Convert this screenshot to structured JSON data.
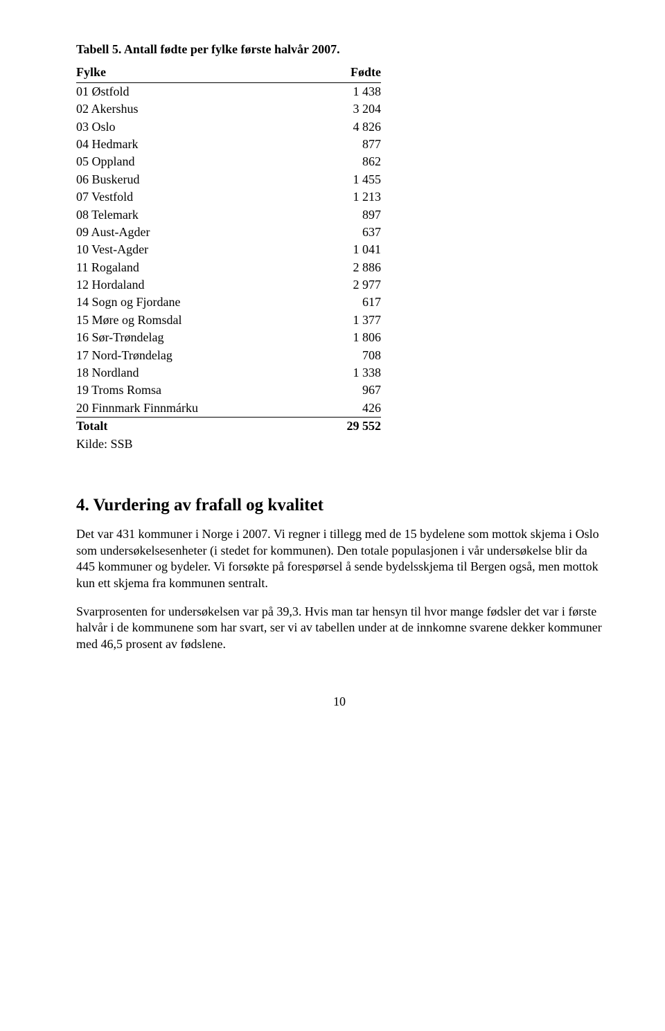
{
  "table": {
    "title": "Tabell 5. Antall fødte per fylke første halvår 2007.",
    "header_left": "Fylke",
    "header_right": "Fødte",
    "rows": [
      {
        "label": "01 Østfold",
        "value": "1 438"
      },
      {
        "label": "02 Akershus",
        "value": "3 204"
      },
      {
        "label": "03 Oslo",
        "value": "4 826"
      },
      {
        "label": "04 Hedmark",
        "value": "877"
      },
      {
        "label": "05 Oppland",
        "value": "862"
      },
      {
        "label": "06 Buskerud",
        "value": "1 455"
      },
      {
        "label": "07 Vestfold",
        "value": "1 213"
      },
      {
        "label": "08 Telemark",
        "value": "897"
      },
      {
        "label": "09 Aust-Agder",
        "value": "637"
      },
      {
        "label": "10 Vest-Agder",
        "value": "1 041"
      },
      {
        "label": "11 Rogaland",
        "value": "2 886"
      },
      {
        "label": "12 Hordaland",
        "value": "2 977"
      },
      {
        "label": "14 Sogn og Fjordane",
        "value": "617"
      },
      {
        "label": "15 Møre og Romsdal",
        "value": "1 377"
      },
      {
        "label": "16 Sør-Trøndelag",
        "value": "1 806"
      },
      {
        "label": "17 Nord-Trøndelag",
        "value": "708"
      },
      {
        "label": "18 Nordland",
        "value": "1 338"
      },
      {
        "label": "19 Troms Romsa",
        "value": "967"
      },
      {
        "label": "20 Finnmark Finnmárku",
        "value": "426"
      }
    ],
    "total_label": "Totalt",
    "total_value": "29 552",
    "source": "Kilde: SSB"
  },
  "section": {
    "heading": "4.   Vurdering av frafall og kvalitet",
    "p1": "Det var 431 kommuner i Norge i 2007. Vi regner i tillegg med de 15 bydelene som mottok skjema i Oslo som undersøkelsesenheter (i stedet for kommunen). Den totale populasjonen i vår undersøkelse blir da 445 kommuner og bydeler. Vi forsøkte på forespørsel å sende bydelsskjema til Bergen også, men mottok kun ett skjema fra kommunen sentralt.",
    "p2": "Svarprosenten for undersøkelsen var på 39,3. Hvis man tar hensyn til hvor mange fødsler det var i første halvår i de kommunene som har svart, ser vi av tabellen under at de innkomne svarene dekker kommuner med 46,5 prosent av fødslene."
  },
  "page_number": "10"
}
